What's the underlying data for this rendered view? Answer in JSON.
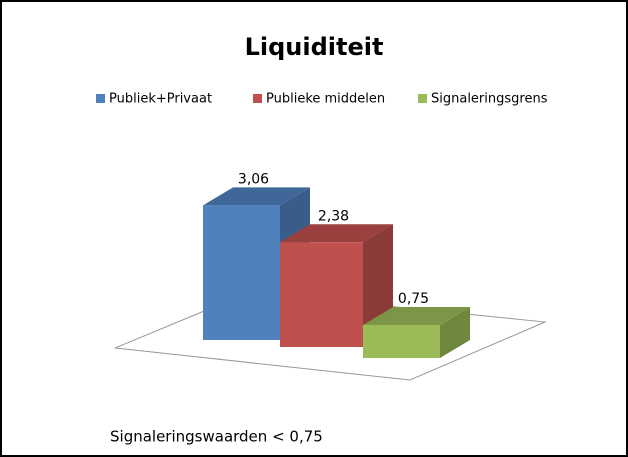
{
  "chart_data": {
    "type": "bar3d",
    "title": "Liquiditeit",
    "series": [
      {
        "name": "Publiek+Privaat",
        "color": "#4f81bd",
        "values": [
          3.06
        ],
        "value_labels": [
          "3,06"
        ]
      },
      {
        "name": "Publieke middelen",
        "color": "#c0504d",
        "values": [
          2.38
        ],
        "value_labels": [
          "2,38"
        ]
      },
      {
        "name": "Signaleringsgrens",
        "color": "#9bbb59",
        "values": [
          0.75
        ],
        "value_labels": [
          "0,75"
        ]
      }
    ],
    "note": "Signaleringswaarden < 0,75"
  }
}
